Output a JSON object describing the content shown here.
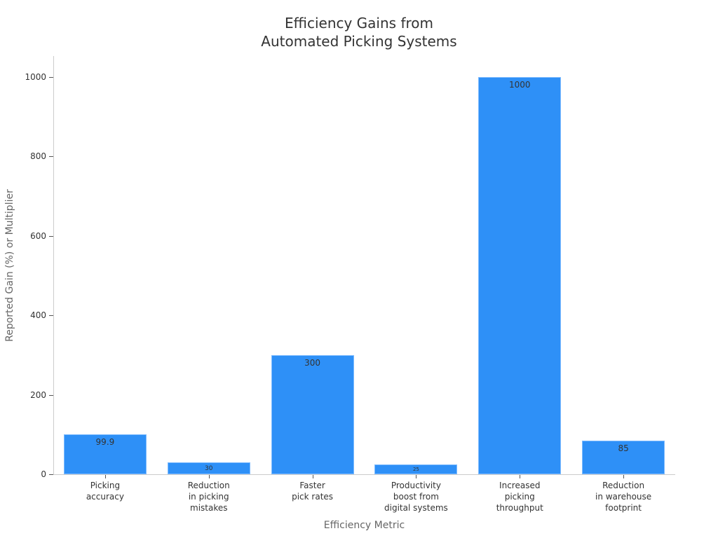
{
  "chart_data": {
    "type": "bar",
    "title": "Efficiency Gains from Automated Picking Systems",
    "title_lines": [
      "Efficiency Gains from",
      "Automated Picking Systems"
    ],
    "xlabel": "Efficiency Metric",
    "ylabel": "Reported Gain (%) or Multiplier",
    "categories": [
      "Picking accuracy",
      "Reduction in picking mistakes",
      "Faster pick rates",
      "Productivity boost from digital systems",
      "Increased picking throughput",
      "Reduction in warehouse footprint"
    ],
    "category_lines": [
      [
        "Picking",
        "accuracy"
      ],
      [
        "Reduction",
        "in picking",
        "mistakes"
      ],
      [
        "Faster",
        "pick rates"
      ],
      [
        "Productivity",
        "boost from",
        "digital systems"
      ],
      [
        "Increased",
        "picking",
        "throughput"
      ],
      [
        "Reduction",
        "in warehouse",
        "footprint"
      ]
    ],
    "values": [
      99.9,
      30,
      300,
      25,
      1000,
      85
    ],
    "value_labels": [
      "99.9",
      "30",
      "300",
      "25",
      "1000",
      "85"
    ],
    "yticks": [
      0,
      200,
      400,
      600,
      800,
      1000
    ],
    "ylim": [
      0,
      1050
    ],
    "grid": false,
    "legend": null,
    "bar_color": "#2e90f7"
  }
}
